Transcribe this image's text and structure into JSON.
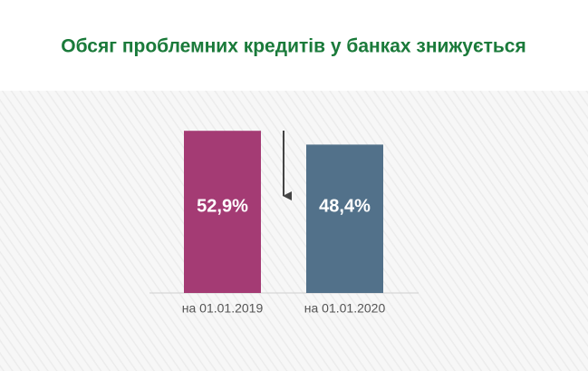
{
  "chart_data": {
    "type": "bar",
    "title": "Обсяг проблемних кредитів у банках знижується",
    "categories": [
      "на 01.01.2019",
      "на 01.01.2020"
    ],
    "values": [
      52.9,
      48.4
    ],
    "value_labels": [
      "52,9%",
      "48,4%"
    ],
    "colors": [
      "#a43b74",
      "#52718a"
    ],
    "title_color": "#1a7a3a"
  }
}
